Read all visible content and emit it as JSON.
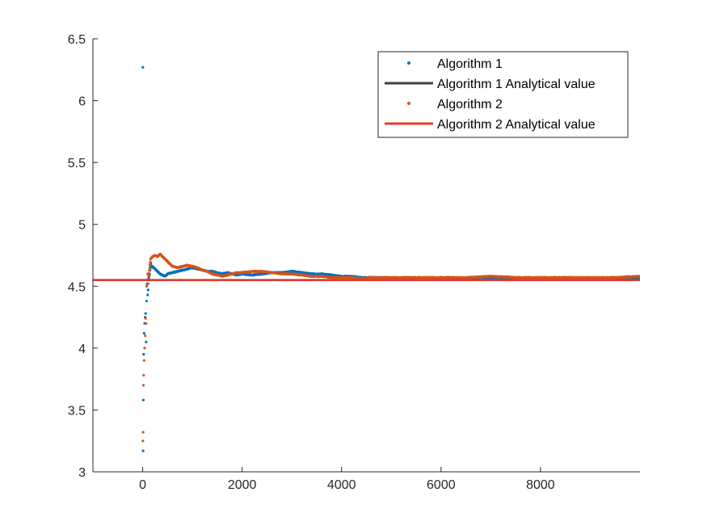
{
  "chart_data": {
    "type": "scatter",
    "title": "",
    "xlabel": "",
    "ylabel": "",
    "xlim": [
      -1000,
      10000
    ],
    "ylim": [
      3,
      6.5
    ],
    "x_ticks": [
      0,
      2000,
      4000,
      6000,
      8000
    ],
    "x_tick_labels": [
      "0",
      "2000",
      "4000",
      "6000",
      "8000"
    ],
    "y_ticks": [
      3,
      3.5,
      4,
      4.5,
      5,
      5.5,
      6,
      6.5
    ],
    "y_tick_labels": [
      "3",
      "3.5",
      "4",
      "4.5",
      "5",
      "5.5",
      "6",
      "6.5"
    ],
    "grid": false,
    "legend_position": "top-right",
    "series": [
      {
        "name": "Algorithm 1",
        "kind": "scatter",
        "color": "#0072BD",
        "points": [
          [
            5,
            6.27
          ],
          [
            10,
            3.17
          ],
          [
            15,
            3.58
          ],
          [
            20,
            3.95
          ],
          [
            30,
            4.12
          ],
          [
            40,
            4.2
          ],
          [
            50,
            4.25
          ],
          [
            60,
            4.28
          ],
          [
            70,
            4.05
          ],
          [
            80,
            4.38
          ],
          [
            90,
            4.52
          ],
          [
            100,
            4.43
          ],
          [
            110,
            4.47
          ],
          [
            120,
            4.56
          ],
          [
            140,
            4.6
          ],
          [
            160,
            4.69
          ],
          [
            180,
            4.65
          ],
          [
            200,
            4.66
          ],
          [
            250,
            4.64
          ],
          [
            300,
            4.62
          ],
          [
            350,
            4.6
          ],
          [
            400,
            4.59
          ],
          [
            450,
            4.58
          ],
          [
            500,
            4.6
          ],
          [
            600,
            4.61
          ],
          [
            700,
            4.62
          ],
          [
            800,
            4.63
          ],
          [
            900,
            4.64
          ],
          [
            1000,
            4.65
          ],
          [
            1100,
            4.64
          ],
          [
            1200,
            4.63
          ],
          [
            1300,
            4.62
          ],
          [
            1400,
            4.62
          ],
          [
            1500,
            4.61
          ],
          [
            1600,
            4.6
          ],
          [
            1700,
            4.61
          ],
          [
            1800,
            4.6
          ],
          [
            1900,
            4.59
          ],
          [
            2000,
            4.6
          ],
          [
            2200,
            4.59
          ],
          [
            2400,
            4.6
          ],
          [
            2600,
            4.61
          ],
          [
            2800,
            4.61
          ],
          [
            3000,
            4.62
          ],
          [
            3200,
            4.61
          ],
          [
            3400,
            4.6
          ],
          [
            3600,
            4.6
          ],
          [
            3800,
            4.59
          ],
          [
            4000,
            4.58
          ],
          [
            4200,
            4.58
          ],
          [
            4400,
            4.57
          ],
          [
            4600,
            4.57
          ],
          [
            4800,
            4.57
          ],
          [
            5000,
            4.56
          ],
          [
            5500,
            4.56
          ],
          [
            6000,
            4.56
          ],
          [
            6500,
            4.56
          ],
          [
            7000,
            4.56
          ],
          [
            7500,
            4.56
          ],
          [
            8000,
            4.56
          ],
          [
            8500,
            4.56
          ],
          [
            9000,
            4.56
          ],
          [
            9500,
            4.56
          ],
          [
            9990,
            4.56
          ]
        ]
      },
      {
        "name": "Algorithm 1 Analytical value",
        "kind": "line",
        "color": "#404040",
        "y": 4.55
      },
      {
        "name": "Algorithm 2",
        "kind": "scatter",
        "color": "#D95319",
        "points": [
          [
            5,
            3.25
          ],
          [
            10,
            3.32
          ],
          [
            15,
            3.7
          ],
          [
            20,
            3.78
          ],
          [
            30,
            3.9
          ],
          [
            40,
            4.0
          ],
          [
            50,
            4.1
          ],
          [
            60,
            4.24
          ],
          [
            70,
            4.2
          ],
          [
            80,
            4.5
          ],
          [
            90,
            4.55
          ],
          [
            100,
            4.6
          ],
          [
            110,
            4.52
          ],
          [
            120,
            4.58
          ],
          [
            140,
            4.65
          ],
          [
            160,
            4.72
          ],
          [
            180,
            4.73
          ],
          [
            200,
            4.74
          ],
          [
            250,
            4.75
          ],
          [
            300,
            4.74
          ],
          [
            350,
            4.76
          ],
          [
            400,
            4.74
          ],
          [
            450,
            4.72
          ],
          [
            500,
            4.7
          ],
          [
            600,
            4.66
          ],
          [
            700,
            4.65
          ],
          [
            800,
            4.66
          ],
          [
            900,
            4.67
          ],
          [
            1000,
            4.66
          ],
          [
            1100,
            4.65
          ],
          [
            1200,
            4.63
          ],
          [
            1300,
            4.62
          ],
          [
            1400,
            4.6
          ],
          [
            1500,
            4.59
          ],
          [
            1600,
            4.58
          ],
          [
            1700,
            4.59
          ],
          [
            1800,
            4.6
          ],
          [
            1900,
            4.61
          ],
          [
            2000,
            4.61
          ],
          [
            2200,
            4.62
          ],
          [
            2400,
            4.62
          ],
          [
            2600,
            4.61
          ],
          [
            2800,
            4.6
          ],
          [
            3000,
            4.6
          ],
          [
            3200,
            4.59
          ],
          [
            3400,
            4.58
          ],
          [
            3600,
            4.58
          ],
          [
            3800,
            4.57
          ],
          [
            4000,
            4.57
          ],
          [
            4200,
            4.57
          ],
          [
            4400,
            4.56
          ],
          [
            4600,
            4.57
          ],
          [
            4800,
            4.57
          ],
          [
            5000,
            4.57
          ],
          [
            5500,
            4.57
          ],
          [
            6000,
            4.57
          ],
          [
            6500,
            4.57
          ],
          [
            7000,
            4.58
          ],
          [
            7500,
            4.57
          ],
          [
            8000,
            4.57
          ],
          [
            8500,
            4.57
          ],
          [
            9000,
            4.57
          ],
          [
            9500,
            4.57
          ],
          [
            9990,
            4.58
          ]
        ]
      },
      {
        "name": "Algorithm 2 Analytical value",
        "kind": "line",
        "color": "#E8382B",
        "y": 4.55
      }
    ]
  }
}
